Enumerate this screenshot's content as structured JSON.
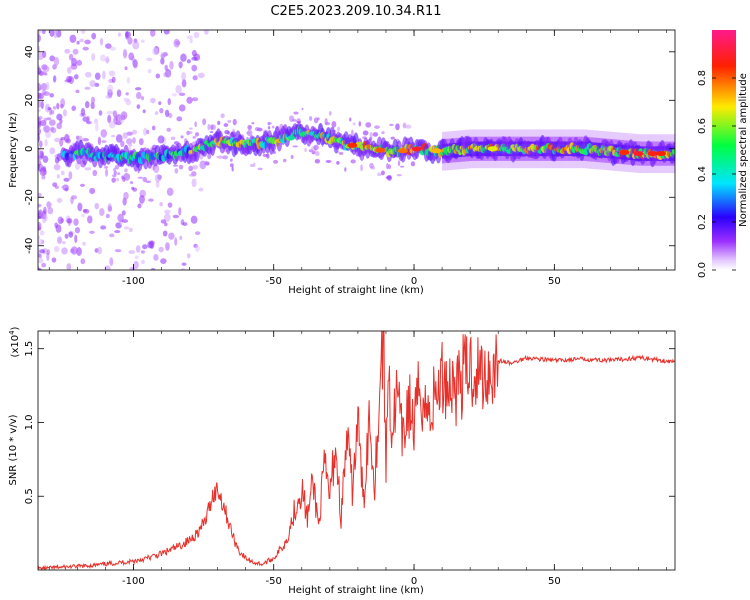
{
  "title": "C2E5.2023.209.10.34.R11",
  "colors": {
    "snr_line": "#e8302a",
    "axis": "#000000",
    "background": "#ffffff"
  },
  "chart_data": [
    {
      "type": "heatmap",
      "xlabel": "Height of straight line (km)",
      "ylabel": "Frequency (Hz)",
      "xlim": [
        -134,
        93
      ],
      "ylim": [
        -50,
        49
      ],
      "xticks": [
        -100,
        -50,
        0,
        50
      ],
      "xtick_labels": [
        "-100",
        "-50",
        "0",
        "50"
      ],
      "yticks": [
        -40,
        -20,
        0,
        20,
        40
      ],
      "ytick_labels": [
        "-40",
        "-20",
        "0",
        "20",
        "40"
      ],
      "colorbar": {
        "label": "Normalized spectral amplitude",
        "range": [
          0,
          1
        ],
        "ticks": [
          0.0,
          0.2,
          0.4,
          0.6,
          0.8
        ],
        "tick_labels": [
          "0.0",
          "0.2",
          "0.4",
          "0.6",
          "0.8"
        ],
        "colormap": [
          "#ffffff",
          "#9b30ff",
          "#2a00ff",
          "#00e5ff",
          "#00ff40",
          "#ffea00",
          "#ff2000",
          "#ff1a8c"
        ]
      },
      "ridge": {
        "x": [
          -132,
          -120,
          -110,
          -100,
          -90,
          -80,
          -70,
          -60,
          -50,
          -45,
          -40,
          -35,
          -30,
          -25,
          -20,
          -15,
          -10,
          -5,
          0,
          10,
          20,
          30,
          40,
          50,
          60,
          70,
          80,
          93
        ],
        "y": [
          -3,
          -2,
          -3,
          -4,
          -3,
          -1,
          3,
          2,
          3,
          5,
          7,
          6,
          4,
          2,
          1,
          0,
          -1,
          -1,
          0,
          -1,
          0,
          0,
          0,
          0,
          0,
          -1,
          -2,
          -2
        ]
      }
    },
    {
      "type": "line",
      "xlabel": "Height of straight line (km)",
      "ylabel": "SNR (10 * v/v)",
      "y_multiplier": "(x10",
      "y_multiplier_exp": "4",
      "y_multiplier_close": ")",
      "xlim": [
        -134,
        93
      ],
      "ylim": [
        0,
        1.62
      ],
      "xticks": [
        -100,
        -50,
        0,
        50
      ],
      "xtick_labels": [
        "-100",
        "-50",
        "0",
        "50"
      ],
      "yticks": [
        0.5,
        1.0,
        1.5
      ],
      "ytick_labels": [
        "0.5",
        "1.0",
        "1.5"
      ],
      "series": [
        {
          "x": [
            -134,
            -125,
            -115,
            -105,
            -100,
            -95,
            -90,
            -85,
            -80,
            -76,
            -74,
            -72,
            -70,
            -68,
            -66,
            -64,
            -62,
            -60,
            -57,
            -54,
            -50,
            -46,
            -44,
            -42,
            -40,
            -38,
            -36,
            -34,
            -32,
            -30,
            -28,
            -26,
            -24,
            -22,
            -20,
            -18,
            -16,
            -14,
            -12,
            -11,
            -10,
            -9,
            -8,
            -6,
            -4,
            -2,
            0,
            2,
            5,
            8,
            10,
            15,
            20,
            25,
            30,
            35,
            40,
            50,
            60,
            70,
            80,
            93
          ],
          "y": [
            0.01,
            0.02,
            0.03,
            0.05,
            0.06,
            0.08,
            0.11,
            0.15,
            0.2,
            0.28,
            0.35,
            0.5,
            0.55,
            0.45,
            0.32,
            0.2,
            0.12,
            0.08,
            0.05,
            0.04,
            0.08,
            0.18,
            0.3,
            0.45,
            0.55,
            0.35,
            0.6,
            0.3,
            0.7,
            0.5,
            0.85,
            0.35,
            0.9,
            0.55,
            1.0,
            0.45,
            1.05,
            0.6,
            1.3,
            1.62,
            0.7,
            1.45,
            0.9,
            1.2,
            0.85,
            1.15,
            0.95,
            1.25,
            1.05,
            1.2,
            1.3,
            1.25,
            1.38,
            1.32,
            1.42,
            1.4,
            1.44,
            1.42,
            1.43,
            1.42,
            1.44,
            1.41
          ]
        }
      ]
    }
  ]
}
